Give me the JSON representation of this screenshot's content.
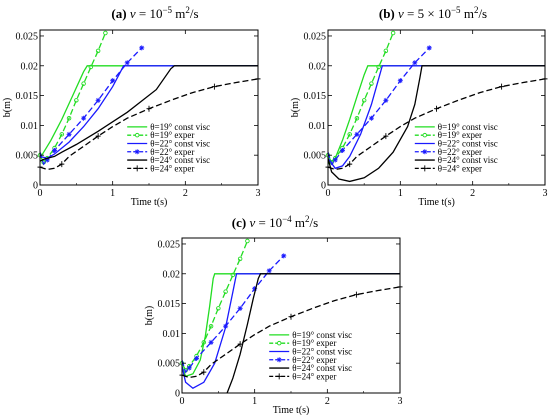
{
  "chart_data": [
    {
      "type": "line",
      "panel": "a",
      "title_label": "(a)",
      "title_nu": "10",
      "title_exp": "−5",
      "title_unit": "m",
      "xlabel": "Time t(s)",
      "ylabel": "b(m)",
      "xlim": [
        0,
        3
      ],
      "ylim": [
        0,
        0.026
      ],
      "xticks": [
        0,
        1,
        2,
        3
      ],
      "yticks": [
        0,
        0.005,
        0.01,
        0.015,
        0.02,
        0.025
      ],
      "legend_position": "bottom-right",
      "series": [
        {
          "name": "θ=19° const visc",
          "color": "#22dd22",
          "style": "solid",
          "marker": "none",
          "x": [
            0,
            0.15,
            0.3,
            0.45,
            0.6,
            0.65,
            0.66,
            3.0
          ],
          "y": [
            0.0045,
            0.0075,
            0.011,
            0.015,
            0.019,
            0.02,
            0.02,
            0.02
          ]
        },
        {
          "name": "θ=19° exper",
          "color": "#22dd22",
          "style": "dashed",
          "marker": "circle",
          "x": [
            0.0,
            0.05,
            0.1,
            0.2,
            0.3,
            0.4,
            0.5,
            0.6,
            0.7,
            0.8,
            0.9
          ],
          "y": [
            0.005,
            0.0038,
            0.0045,
            0.0062,
            0.0085,
            0.0112,
            0.0142,
            0.017,
            0.0198,
            0.0225,
            0.0255
          ]
        },
        {
          "name": "θ=22° const visc",
          "color": "#1a1aff",
          "style": "solid",
          "marker": "none",
          "x": [
            0,
            0.1,
            0.2,
            0.4,
            0.6,
            0.8,
            1.0,
            1.1,
            1.15,
            3.0
          ],
          "y": [
            0.0048,
            0.0045,
            0.0052,
            0.0072,
            0.0098,
            0.0128,
            0.0165,
            0.0188,
            0.02,
            0.02
          ]
        },
        {
          "name": "θ=22° exper",
          "color": "#1a1aff",
          "style": "dashed",
          "marker": "star",
          "x": [
            0.0,
            0.05,
            0.1,
            0.2,
            0.4,
            0.6,
            0.8,
            1.0,
            1.2,
            1.4
          ],
          "y": [
            0.0055,
            0.0035,
            0.0042,
            0.0058,
            0.0085,
            0.0112,
            0.0142,
            0.0175,
            0.0205,
            0.023
          ]
        },
        {
          "name": "θ=24° const visc",
          "color": "#000000",
          "style": "solid",
          "marker": "none",
          "x": [
            0,
            0.05,
            0.1,
            0.2,
            0.3,
            0.5,
            0.8,
            1.2,
            1.6,
            1.8,
            1.85,
            3.0
          ],
          "y": [
            0.004,
            0.0043,
            0.0045,
            0.0048,
            0.0055,
            0.0068,
            0.009,
            0.0122,
            0.016,
            0.0195,
            0.02,
            0.02
          ]
        },
        {
          "name": "θ=24° exper",
          "color": "#000000",
          "style": "dashed",
          "marker": "plus",
          "x": [
            0.0,
            0.1,
            0.2,
            0.3,
            0.4,
            0.6,
            0.8,
            1.0,
            1.2,
            1.5,
            1.8,
            2.1,
            2.4,
            2.7,
            3.0
          ],
          "y": [
            0.003,
            0.0026,
            0.0028,
            0.0035,
            0.0048,
            0.0065,
            0.0082,
            0.0098,
            0.0112,
            0.0128,
            0.0142,
            0.0155,
            0.0165,
            0.0172,
            0.0178
          ]
        }
      ]
    },
    {
      "type": "line",
      "panel": "b",
      "title_label": "(b)",
      "title_nu": "5 × 10",
      "title_exp": "−5",
      "title_unit": "m",
      "xlabel": "Time t(s)",
      "ylabel": "b(m)",
      "xlim": [
        0,
        3
      ],
      "ylim": [
        0,
        0.026
      ],
      "xticks": [
        0,
        1,
        2,
        3
      ],
      "yticks": [
        0,
        0.005,
        0.01,
        0.015,
        0.02,
        0.025
      ],
      "legend_position": "bottom-right",
      "series": [
        {
          "name": "θ=19° const visc",
          "color": "#22dd22",
          "style": "solid",
          "marker": "none",
          "x": [
            0,
            0.1,
            0.2,
            0.3,
            0.4,
            0.5,
            0.55,
            3.0
          ],
          "y": [
            0.0035,
            0.0045,
            0.0075,
            0.011,
            0.0148,
            0.0185,
            0.02,
            0.02
          ]
        },
        {
          "name": "θ=19° exper",
          "color": "#22dd22",
          "style": "dashed",
          "marker": "circle",
          "x": [
            0.0,
            0.05,
            0.1,
            0.2,
            0.3,
            0.4,
            0.5,
            0.6,
            0.7,
            0.8,
            0.9
          ],
          "y": [
            0.005,
            0.0038,
            0.0045,
            0.0062,
            0.0085,
            0.0112,
            0.0142,
            0.017,
            0.0198,
            0.0225,
            0.0255
          ]
        },
        {
          "name": "θ=22° const visc",
          "color": "#1a1aff",
          "style": "solid",
          "marker": "none",
          "x": [
            0,
            0.1,
            0.2,
            0.3,
            0.45,
            0.6,
            0.7,
            0.75,
            3.0
          ],
          "y": [
            0.0045,
            0.0028,
            0.0032,
            0.0048,
            0.0085,
            0.0135,
            0.0178,
            0.02,
            0.02
          ]
        },
        {
          "name": "θ=22° exper",
          "color": "#1a1aff",
          "style": "dashed",
          "marker": "star",
          "x": [
            0.0,
            0.05,
            0.1,
            0.2,
            0.4,
            0.6,
            0.8,
            1.0,
            1.2,
            1.4
          ],
          "y": [
            0.0055,
            0.0035,
            0.0042,
            0.0058,
            0.0085,
            0.0112,
            0.0142,
            0.0175,
            0.0205,
            0.023
          ]
        },
        {
          "name": "θ=24° const visc",
          "color": "#000000",
          "style": "solid",
          "marker": "none",
          "x": [
            0,
            0.05,
            0.15,
            0.3,
            0.5,
            0.7,
            0.9,
            1.1,
            1.2,
            1.27,
            1.3,
            3.0
          ],
          "y": [
            0.0045,
            0.0022,
            0.001,
            0.0006,
            0.0012,
            0.0028,
            0.0055,
            0.0098,
            0.0135,
            0.018,
            0.02,
            0.02
          ]
        },
        {
          "name": "θ=24° exper",
          "color": "#000000",
          "style": "dashed",
          "marker": "plus",
          "x": [
            0.0,
            0.1,
            0.2,
            0.3,
            0.4,
            0.6,
            0.8,
            1.0,
            1.2,
            1.5,
            1.8,
            2.1,
            2.4,
            2.7,
            3.0
          ],
          "y": [
            0.003,
            0.0026,
            0.0028,
            0.0035,
            0.0048,
            0.0065,
            0.0082,
            0.0098,
            0.0112,
            0.0128,
            0.0142,
            0.0155,
            0.0165,
            0.0172,
            0.0178
          ]
        }
      ]
    },
    {
      "type": "line",
      "panel": "c",
      "title_label": "(c)",
      "title_nu": "10",
      "title_exp": "−4",
      "title_unit": "m",
      "xlabel": "Time t(s)",
      "ylabel": "b(m)",
      "xlim": [
        0,
        3
      ],
      "ylim": [
        0,
        0.026
      ],
      "xticks": [
        0,
        1,
        2,
        3
      ],
      "yticks": [
        0,
        0.005,
        0.01,
        0.015,
        0.02,
        0.025
      ],
      "legend_position": "bottom-right",
      "series": [
        {
          "name": "θ=19° const visc",
          "color": "#22dd22",
          "style": "solid",
          "marker": "none",
          "x": [
            0,
            0.05,
            0.15,
            0.25,
            0.32,
            0.38,
            0.43,
            0.45,
            3.0
          ],
          "y": [
            0.0045,
            0.0028,
            0.0032,
            0.0055,
            0.0095,
            0.0145,
            0.0192,
            0.02,
            0.02
          ]
        },
        {
          "name": "θ=19° exper",
          "color": "#22dd22",
          "style": "dashed",
          "marker": "circle",
          "x": [
            0.0,
            0.05,
            0.1,
            0.2,
            0.3,
            0.4,
            0.5,
            0.6,
            0.7,
            0.8,
            0.9
          ],
          "y": [
            0.005,
            0.0038,
            0.0045,
            0.0062,
            0.0085,
            0.0112,
            0.0142,
            0.017,
            0.0198,
            0.0225,
            0.0255
          ]
        },
        {
          "name": "θ=22° const visc",
          "color": "#1a1aff",
          "style": "solid",
          "marker": "none",
          "x": [
            0,
            0.05,
            0.15,
            0.3,
            0.45,
            0.6,
            0.7,
            0.75,
            3.0
          ],
          "y": [
            0.0045,
            0.0018,
            0.0008,
            0.0018,
            0.005,
            0.011,
            0.017,
            0.02,
            0.02
          ]
        },
        {
          "name": "θ=22° exper",
          "color": "#1a1aff",
          "style": "dashed",
          "marker": "star",
          "x": [
            0.0,
            0.05,
            0.1,
            0.2,
            0.4,
            0.6,
            0.8,
            1.0,
            1.2,
            1.4
          ],
          "y": [
            0.0055,
            0.0035,
            0.0042,
            0.0058,
            0.0085,
            0.0112,
            0.0142,
            0.0175,
            0.0205,
            0.023
          ]
        },
        {
          "name": "θ=24° const visc",
          "color": "#000000",
          "style": "solid",
          "marker": "none",
          "x": [
            0.62,
            0.7,
            0.8,
            0.9,
            0.98,
            1.05,
            1.08,
            3.0
          ],
          "y": [
            0.0,
            0.0025,
            0.0065,
            0.0115,
            0.0158,
            0.0192,
            0.02,
            0.02
          ]
        },
        {
          "name": "θ=24° exper",
          "color": "#000000",
          "style": "dashed",
          "marker": "plus",
          "x": [
            0.0,
            0.1,
            0.2,
            0.3,
            0.4,
            0.6,
            0.8,
            1.0,
            1.2,
            1.5,
            1.8,
            2.1,
            2.4,
            2.7,
            3.0
          ],
          "y": [
            0.003,
            0.0026,
            0.0028,
            0.0035,
            0.0048,
            0.0065,
            0.0082,
            0.0098,
            0.0112,
            0.0128,
            0.0142,
            0.0155,
            0.0165,
            0.0172,
            0.0178
          ]
        }
      ]
    }
  ]
}
